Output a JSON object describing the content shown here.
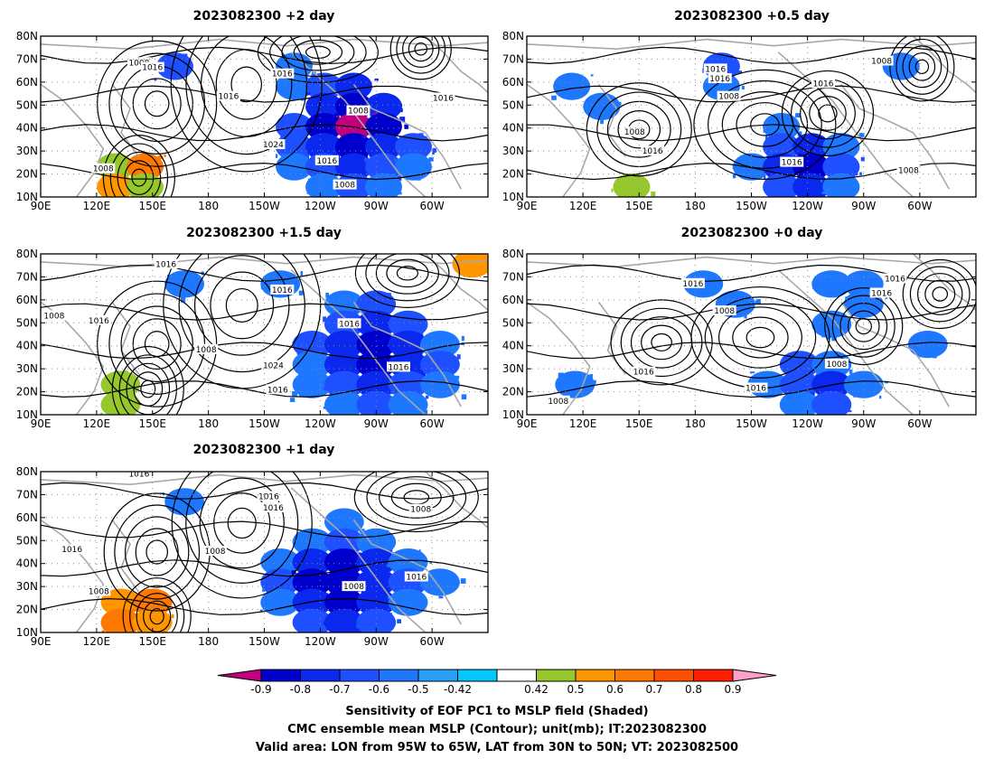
{
  "panels": [
    {
      "id": "p2",
      "title": "2023082300 +2 day",
      "contour_labels": [
        "1008",
        "1016",
        "1016",
        "1016",
        "1008",
        "1024",
        "1016",
        "1008",
        "1016",
        "1008"
      ],
      "shading": [
        [
          0,
          0,
          0,
          0,
          0,
          0,
          0,
          0,
          0,
          0,
          0,
          0,
          0,
          0,
          0
        ],
        [
          0,
          0,
          0,
          0,
          -0.6,
          0,
          0,
          0,
          -0.5,
          0,
          0,
          0,
          0,
          0,
          0
        ],
        [
          0,
          0,
          0,
          0,
          0,
          0,
          0,
          0,
          -0.5,
          -0.6,
          -0.7,
          0,
          0,
          0,
          0
        ],
        [
          0,
          0,
          0,
          0,
          0,
          0,
          0,
          0,
          0,
          -0.7,
          -0.8,
          -0.7,
          0,
          0,
          0
        ],
        [
          0,
          0,
          0,
          0,
          0,
          0,
          0,
          0,
          -0.6,
          -0.8,
          -0.9,
          -0.8,
          0,
          0,
          0
        ],
        [
          0,
          0,
          0,
          0,
          0,
          0,
          0,
          0,
          -0.6,
          -0.7,
          -0.8,
          -0.7,
          -0.6,
          0,
          0
        ],
        [
          0,
          0,
          0.5,
          0.7,
          0,
          0,
          0,
          0,
          -0.5,
          -0.6,
          -0.7,
          -0.6,
          -0.5,
          0,
          0
        ],
        [
          0,
          0,
          0.6,
          0.5,
          0,
          0,
          0,
          0,
          0,
          -0.5,
          -0.6,
          -0.5,
          0,
          0,
          0
        ]
      ]
    },
    {
      "id": "p05",
      "title": "2023082300 +0.5 day",
      "contour_labels": [
        "1016",
        "1016",
        "1008",
        "1008",
        "1016",
        "1008",
        "1016",
        "1016",
        "1008"
      ],
      "shading": [
        [
          0,
          0,
          0,
          0,
          0,
          0,
          0,
          0,
          0,
          0,
          0,
          0,
          0,
          0,
          0
        ],
        [
          0,
          0,
          0,
          0,
          0,
          0,
          -0.6,
          0,
          0,
          0,
          0,
          0,
          -0.5,
          0,
          0
        ],
        [
          0,
          -0.5,
          0,
          0,
          0,
          0,
          -0.5,
          0,
          0,
          0,
          0,
          0,
          0,
          0,
          0
        ],
        [
          0,
          0,
          -0.5,
          0,
          0,
          0,
          0,
          0,
          0,
          0,
          0,
          0,
          0,
          0,
          0
        ],
        [
          0,
          0,
          0,
          0,
          0,
          0,
          0,
          0,
          -0.5,
          0,
          0,
          0,
          0,
          0,
          0
        ],
        [
          0,
          0,
          0,
          0,
          0,
          0,
          0,
          0,
          -0.6,
          -0.7,
          -0.5,
          0,
          0,
          0,
          0
        ],
        [
          0,
          0,
          0,
          0,
          0,
          0,
          0,
          -0.5,
          -0.7,
          -0.8,
          -0.6,
          0,
          0,
          0,
          0
        ],
        [
          0,
          0,
          0,
          0.5,
          0,
          0,
          0,
          0,
          -0.6,
          -0.7,
          -0.5,
          0,
          0,
          0,
          0
        ]
      ]
    },
    {
      "id": "p15",
      "title": "2023082300 +1.5 day",
      "contour_labels": [
        "1016",
        "1008",
        "1016",
        "1016",
        "1008",
        "1016",
        "1024",
        "1016",
        "1016"
      ],
      "shading": [
        [
          0,
          0,
          0,
          0,
          0,
          0,
          0,
          0,
          0,
          0,
          0,
          0,
          0,
          0.6
        ],
        [
          0,
          0,
          0,
          0,
          -0.5,
          0,
          0,
          -0.5,
          0,
          0,
          0,
          0,
          0,
          0
        ],
        [
          0,
          0,
          0,
          0,
          0,
          0,
          0,
          0,
          0,
          -0.5,
          -0.6,
          0,
          0,
          0
        ],
        [
          0,
          0,
          0,
          0,
          0,
          0,
          0,
          0,
          0,
          -0.6,
          -0.7,
          -0.6,
          0,
          0
        ],
        [
          0,
          0,
          0,
          0,
          0,
          0,
          0,
          0,
          -0.6,
          -0.7,
          -0.8,
          -0.7,
          -0.5,
          0
        ],
        [
          0,
          0,
          0,
          0,
          0,
          0,
          0,
          0,
          -0.5,
          -0.7,
          -0.8,
          -0.7,
          -0.6,
          0
        ],
        [
          0,
          0,
          0.5,
          0,
          0,
          0,
          0,
          0,
          -0.5,
          -0.6,
          -0.7,
          -0.6,
          -0.5,
          0
        ],
        [
          0,
          0,
          0.5,
          0,
          0,
          0,
          0,
          0,
          0,
          -0.5,
          -0.6,
          -0.5,
          0,
          0
        ]
      ]
    },
    {
      "id": "p0",
      "title": "2023082300 +0 day",
      "contour_labels": [
        "1016",
        "1016",
        "1016",
        "1008",
        "1016",
        "1016",
        "1008",
        "1008"
      ],
      "shading": [
        [
          0,
          0,
          0,
          0,
          0,
          0,
          0,
          0,
          0,
          0,
          0,
          0,
          0,
          0
        ],
        [
          0,
          0,
          0,
          0,
          0,
          -0.5,
          0,
          0,
          0,
          -0.5,
          -0.5,
          0,
          0,
          0
        ],
        [
          0,
          0,
          0,
          0,
          0,
          0,
          -0.5,
          0,
          0,
          0,
          -0.5,
          0,
          0,
          0
        ],
        [
          0,
          0,
          0,
          0,
          0,
          0,
          0,
          0,
          0,
          -0.5,
          0,
          0,
          0,
          0
        ],
        [
          0,
          0,
          0,
          0,
          0,
          0,
          0,
          0,
          0,
          0,
          0,
          0,
          -0.5,
          0
        ],
        [
          0,
          0,
          0,
          0,
          0,
          0,
          0,
          0,
          -0.6,
          -0.5,
          0,
          0,
          0,
          0
        ],
        [
          0,
          -0.5,
          0,
          0,
          0,
          0,
          0,
          -0.5,
          -0.6,
          -0.7,
          -0.5,
          0,
          0,
          0
        ],
        [
          0,
          0,
          0,
          0,
          0,
          0,
          0,
          0,
          -0.5,
          -0.6,
          0,
          0,
          0,
          0
        ]
      ]
    },
    {
      "id": "p1",
      "title": "2023082300 +1 day",
      "contour_labels": [
        "1016",
        "1016",
        "1016",
        "1008",
        "1008",
        "1016",
        "1008",
        "1016",
        "1008"
      ],
      "shading": [
        [
          0,
          0,
          0,
          0,
          0,
          0,
          0,
          0,
          0,
          0,
          0,
          0,
          0,
          0
        ],
        [
          0,
          0,
          0,
          0,
          -0.5,
          0,
          0,
          0,
          0,
          0,
          0,
          0,
          0,
          0
        ],
        [
          0,
          0,
          0,
          0,
          0,
          0,
          0,
          0,
          0,
          -0.5,
          0,
          0,
          0,
          0
        ],
        [
          0,
          0,
          0,
          0,
          0,
          0,
          0,
          0,
          -0.5,
          -0.6,
          -0.5,
          0,
          0,
          0
        ],
        [
          0,
          0,
          0,
          0,
          0,
          0,
          0,
          -0.5,
          -0.7,
          -0.8,
          -0.7,
          -0.5,
          0,
          0
        ],
        [
          0,
          0,
          0,
          0,
          0,
          0,
          0,
          -0.6,
          -0.8,
          -0.8,
          -0.7,
          -0.6,
          -0.5,
          0
        ],
        [
          0,
          0,
          0.6,
          0.7,
          0,
          0,
          0,
          -0.5,
          -0.7,
          -0.8,
          -0.7,
          -0.5,
          0,
          0
        ],
        [
          0,
          0,
          0.7,
          0.6,
          0,
          0,
          0,
          0,
          -0.6,
          -0.7,
          -0.6,
          0,
          0,
          0
        ]
      ]
    }
  ],
  "axes": {
    "lat_ticks": [
      "10N",
      "20N",
      "30N",
      "40N",
      "50N",
      "60N",
      "70N",
      "80N"
    ],
    "lon_ticks": [
      "90E",
      "120E",
      "150E",
      "180",
      "150W",
      "120W",
      "90W",
      "60W"
    ]
  },
  "colorbar": {
    "levels": [
      "-0.9",
      "-0.8",
      "-0.7",
      "-0.6",
      "-0.5",
      "-0.42",
      "0.42",
      "0.5",
      "0.6",
      "0.7",
      "0.8",
      "0.9"
    ],
    "colors": [
      "#c0007f",
      "#0000cc",
      "#0a28ee",
      "#1e50ff",
      "#1e78ff",
      "#28a0f5",
      "#00c8ff",
      "#ffffff",
      "#96c82d",
      "#ff9600",
      "#ff7800",
      "#ff5000",
      "#ff1e00",
      "#ffa0c8"
    ]
  },
  "footer": [
    "Sensitivity of EOF PC1 to MSLP field (Shaded)",
    "CMC ensemble mean MSLP (Contour); unit(mb); IT:2023082300",
    "Valid area: LON from 95W to 65W, LAT from 30N to 50N; VT: 2023082500"
  ]
}
